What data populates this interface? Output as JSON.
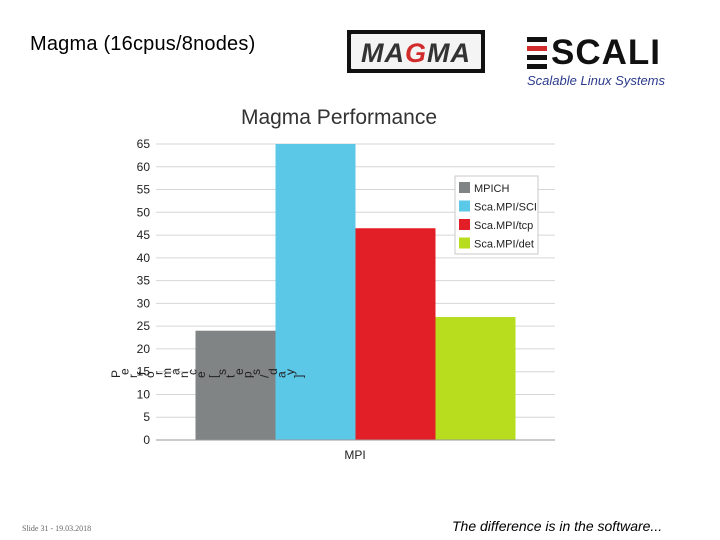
{
  "slide": {
    "title": "Magma (16cpus/8nodes)",
    "footer_left": "Slide 31 - 19.03.2018",
    "footer_right": "The difference is in the software..."
  },
  "logos": {
    "magma": {
      "text": "MAGMA",
      "colors": {
        "letters": "#333333",
        "accent": "#d22b2b",
        "frame": "#111111"
      }
    },
    "scali": {
      "text": "SCALI",
      "tagline": "Scalable Linux Systems",
      "colors": {
        "accent": "#d22b2b",
        "text": "#111111",
        "tagline": "#2b3a8c"
      }
    }
  },
  "chart_data": {
    "type": "bar",
    "title": "Magma Performance",
    "xlabel": "MPI",
    "ylabel": "Performance [steps/day]",
    "categories": [
      "MPI"
    ],
    "ylim": [
      0,
      65
    ],
    "yticks": [
      0,
      5,
      10,
      15,
      20,
      25,
      30,
      35,
      40,
      45,
      50,
      55,
      60,
      65
    ],
    "grid": true,
    "legend_position": "top-right",
    "series": [
      {
        "name": "MPICH",
        "values": [
          24
        ],
        "color": "#808484"
      },
      {
        "name": "Sca.MPI/SCI",
        "values": [
          65
        ],
        "color": "#5bc8e8"
      },
      {
        "name": "Sca.MPI/tcp",
        "values": [
          46.5
        ],
        "color": "#e21e26"
      },
      {
        "name": "Sca.MPI/det",
        "values": [
          27
        ],
        "color": "#b8dd1e"
      }
    ]
  }
}
